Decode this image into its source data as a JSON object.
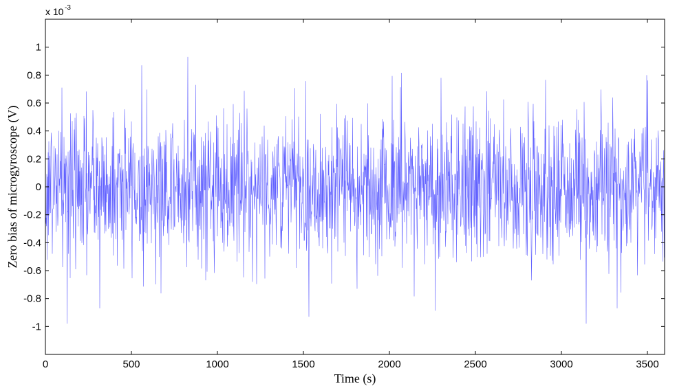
{
  "chart_data": {
    "type": "line",
    "title": "",
    "xlabel": "Time (s)",
    "ylabel": "Zero bias of microgyroscope (V)",
    "y_scale_label": "x 10",
    "y_scale_exponent": "-3",
    "xlim": [
      0,
      3600
    ],
    "ylim": [
      -1.2,
      1.2
    ],
    "x_ticks": [
      0,
      500,
      1000,
      1500,
      2000,
      2500,
      3000,
      3500
    ],
    "x_tick_labels": [
      "0",
      "500",
      "1000",
      "1500",
      "2000",
      "2500",
      "3000",
      "3500"
    ],
    "y_ticks": [
      -1,
      -0.8,
      -0.6,
      -0.4,
      -0.2,
      0,
      0.2,
      0.4,
      0.6,
      0.8,
      1
    ],
    "y_tick_labels": [
      "-1",
      "-0.8",
      "-0.6",
      "-0.4",
      "-0.2",
      "0",
      "0.2",
      "0.4",
      "0.6",
      "0.8",
      "1"
    ],
    "grid": false,
    "series": [
      {
        "color": "#3a3aff",
        "sample_interval_s": 2,
        "sample_count": 1801,
        "noise_std": 0.27,
        "noise_range": [
          -0.98,
          0.93
        ],
        "peaks": [
          {
            "x": 828,
            "y": 0.93
          },
          {
            "x": 3495,
            "y": 0.8
          },
          {
            "x": 95,
            "y": 0.71
          },
          {
            "x": 1532,
            "y": -0.93
          },
          {
            "x": 125,
            "y": -0.98
          },
          {
            "x": 3143,
            "y": -0.98
          },
          {
            "x": 315,
            "y": -0.87
          },
          {
            "x": 3323,
            "y": -0.87
          }
        ]
      }
    ]
  }
}
